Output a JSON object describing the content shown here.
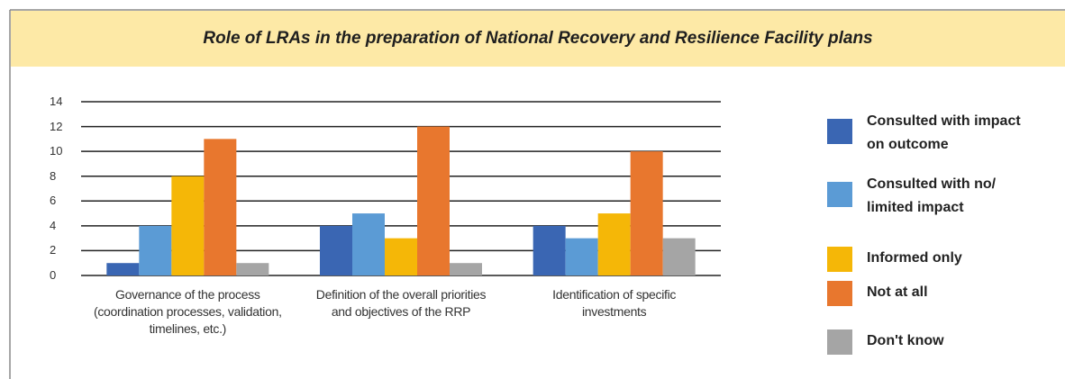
{
  "chart_data": {
    "type": "bar",
    "title": "Role of LRAs in the preparation of National Recovery and Resilience Facility plans",
    "categories": [
      "Governance of the process (coordination processes, validation, timelines, etc.)",
      "Definition of the overall priorities and objectives of the RRP",
      "Identification of specific investments"
    ],
    "series": [
      {
        "name": "Consulted with impact on outcome",
        "color": "#3a66b3",
        "values": [
          1,
          4,
          4
        ]
      },
      {
        "name": "Consulted with no/ limited impact",
        "color": "#5b9bd5",
        "values": [
          4,
          5,
          3
        ]
      },
      {
        "name": "Informed only",
        "color": "#f5b707",
        "values": [
          8,
          3,
          5
        ]
      },
      {
        "name": "Not at all",
        "color": "#e8772e",
        "values": [
          11,
          12,
          10
        ]
      },
      {
        "name": "Don't know",
        "color": "#a5a5a5",
        "values": [
          1,
          1,
          3
        ]
      }
    ],
    "ylim": [
      0,
      14
    ],
    "yticks": [
      0,
      2,
      4,
      6,
      8,
      10,
      12,
      14
    ],
    "grid": true,
    "legend": "right"
  }
}
